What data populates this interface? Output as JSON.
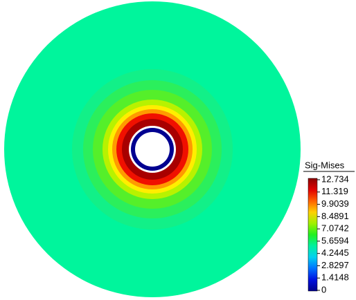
{
  "legend": {
    "title": "Sig-Mises",
    "ticks": [
      "12.734",
      "11.319",
      "9.9039",
      "8.4891",
      "7.0742",
      "5.6594",
      "4.2445",
      "2.8297",
      "1.4148",
      "0"
    ]
  }
}
